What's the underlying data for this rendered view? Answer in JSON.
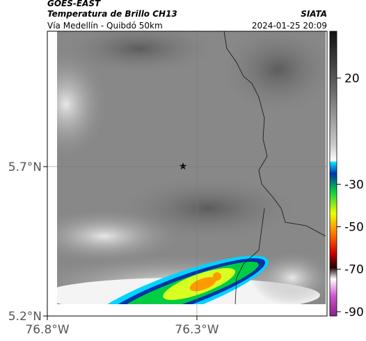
{
  "header": {
    "title": "GOES-EAST",
    "subtitle": "Temperatura de Brillo CH13",
    "agency": "SIATA",
    "location": "Vía Medellín - Quibdó 50km",
    "datetime": "2024-01-25 20:09"
  },
  "map": {
    "latlim": [
      5.2,
      6.153
    ],
    "lonlim": [
      -76.8,
      -75.865
    ],
    "latticks": [
      {
        "value": 5.2,
        "label": "5.2°N"
      },
      {
        "value": 5.7,
        "label": "5.7°N"
      }
    ],
    "lonticks": [
      {
        "value": -76.8,
        "label": "76.8°W"
      },
      {
        "value": -76.3,
        "label": "76.3°W"
      }
    ],
    "grid": true
  },
  "colorbar": {
    "lim": [
      -92,
      42
    ],
    "ticks": [
      20,
      -30,
      -50,
      -70,
      -90
    ]
  }
}
